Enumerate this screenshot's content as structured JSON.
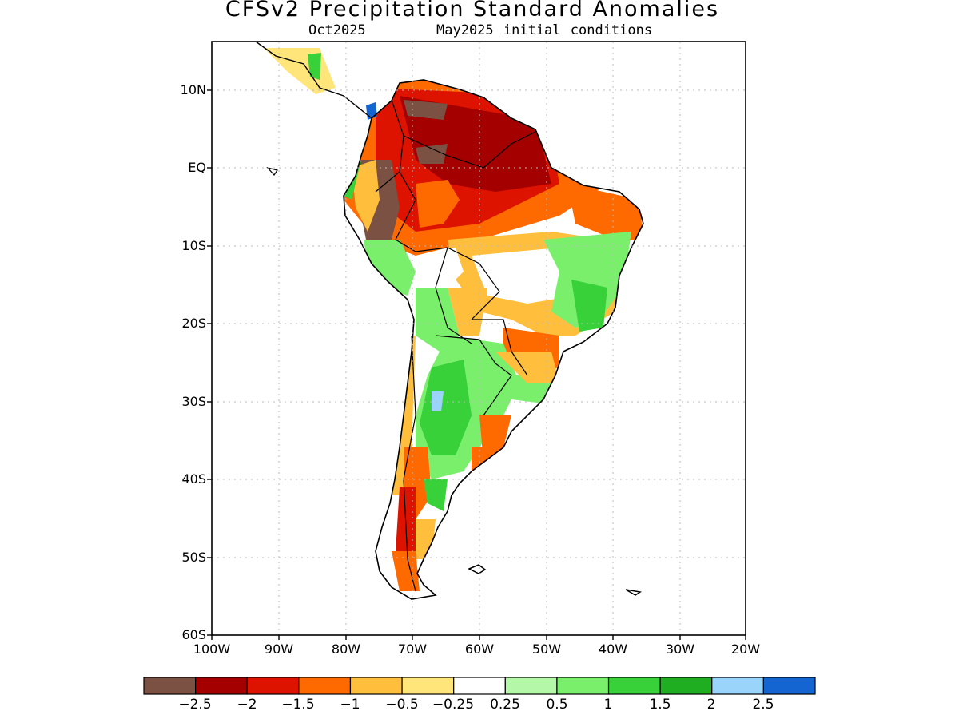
{
  "title": "CFSv2 Precipitation Standard Anomalies",
  "subtitle_left": "Oct2025",
  "subtitle_right": "May2025 initial conditions",
  "map": {
    "lon_labels": [
      "100W",
      "90W",
      "80W",
      "70W",
      "60W",
      "50W",
      "40W",
      "30W",
      "20W"
    ],
    "lat_labels": [
      "10N",
      "EQ",
      "10S",
      "20S",
      "30S",
      "40S",
      "50S",
      "60S"
    ],
    "grid": "dotted",
    "region": "South America"
  },
  "colorbar": {
    "labels": [
      "−2.5",
      "−2",
      "−1.5",
      "−1",
      "−0.5",
      "−0.25",
      "0.25",
      "0.5",
      "1",
      "1.5",
      "2",
      "2.5"
    ],
    "colors": [
      "#7b5144",
      "#a50000",
      "#dd1300",
      "#ff6a00",
      "#ffbf3c",
      "#ffe57a",
      "#ffffff",
      "#b4f7a8",
      "#7aef6c",
      "#38d13a",
      "#1fae22",
      "#9ad4fa",
      "#1464d2"
    ]
  }
}
